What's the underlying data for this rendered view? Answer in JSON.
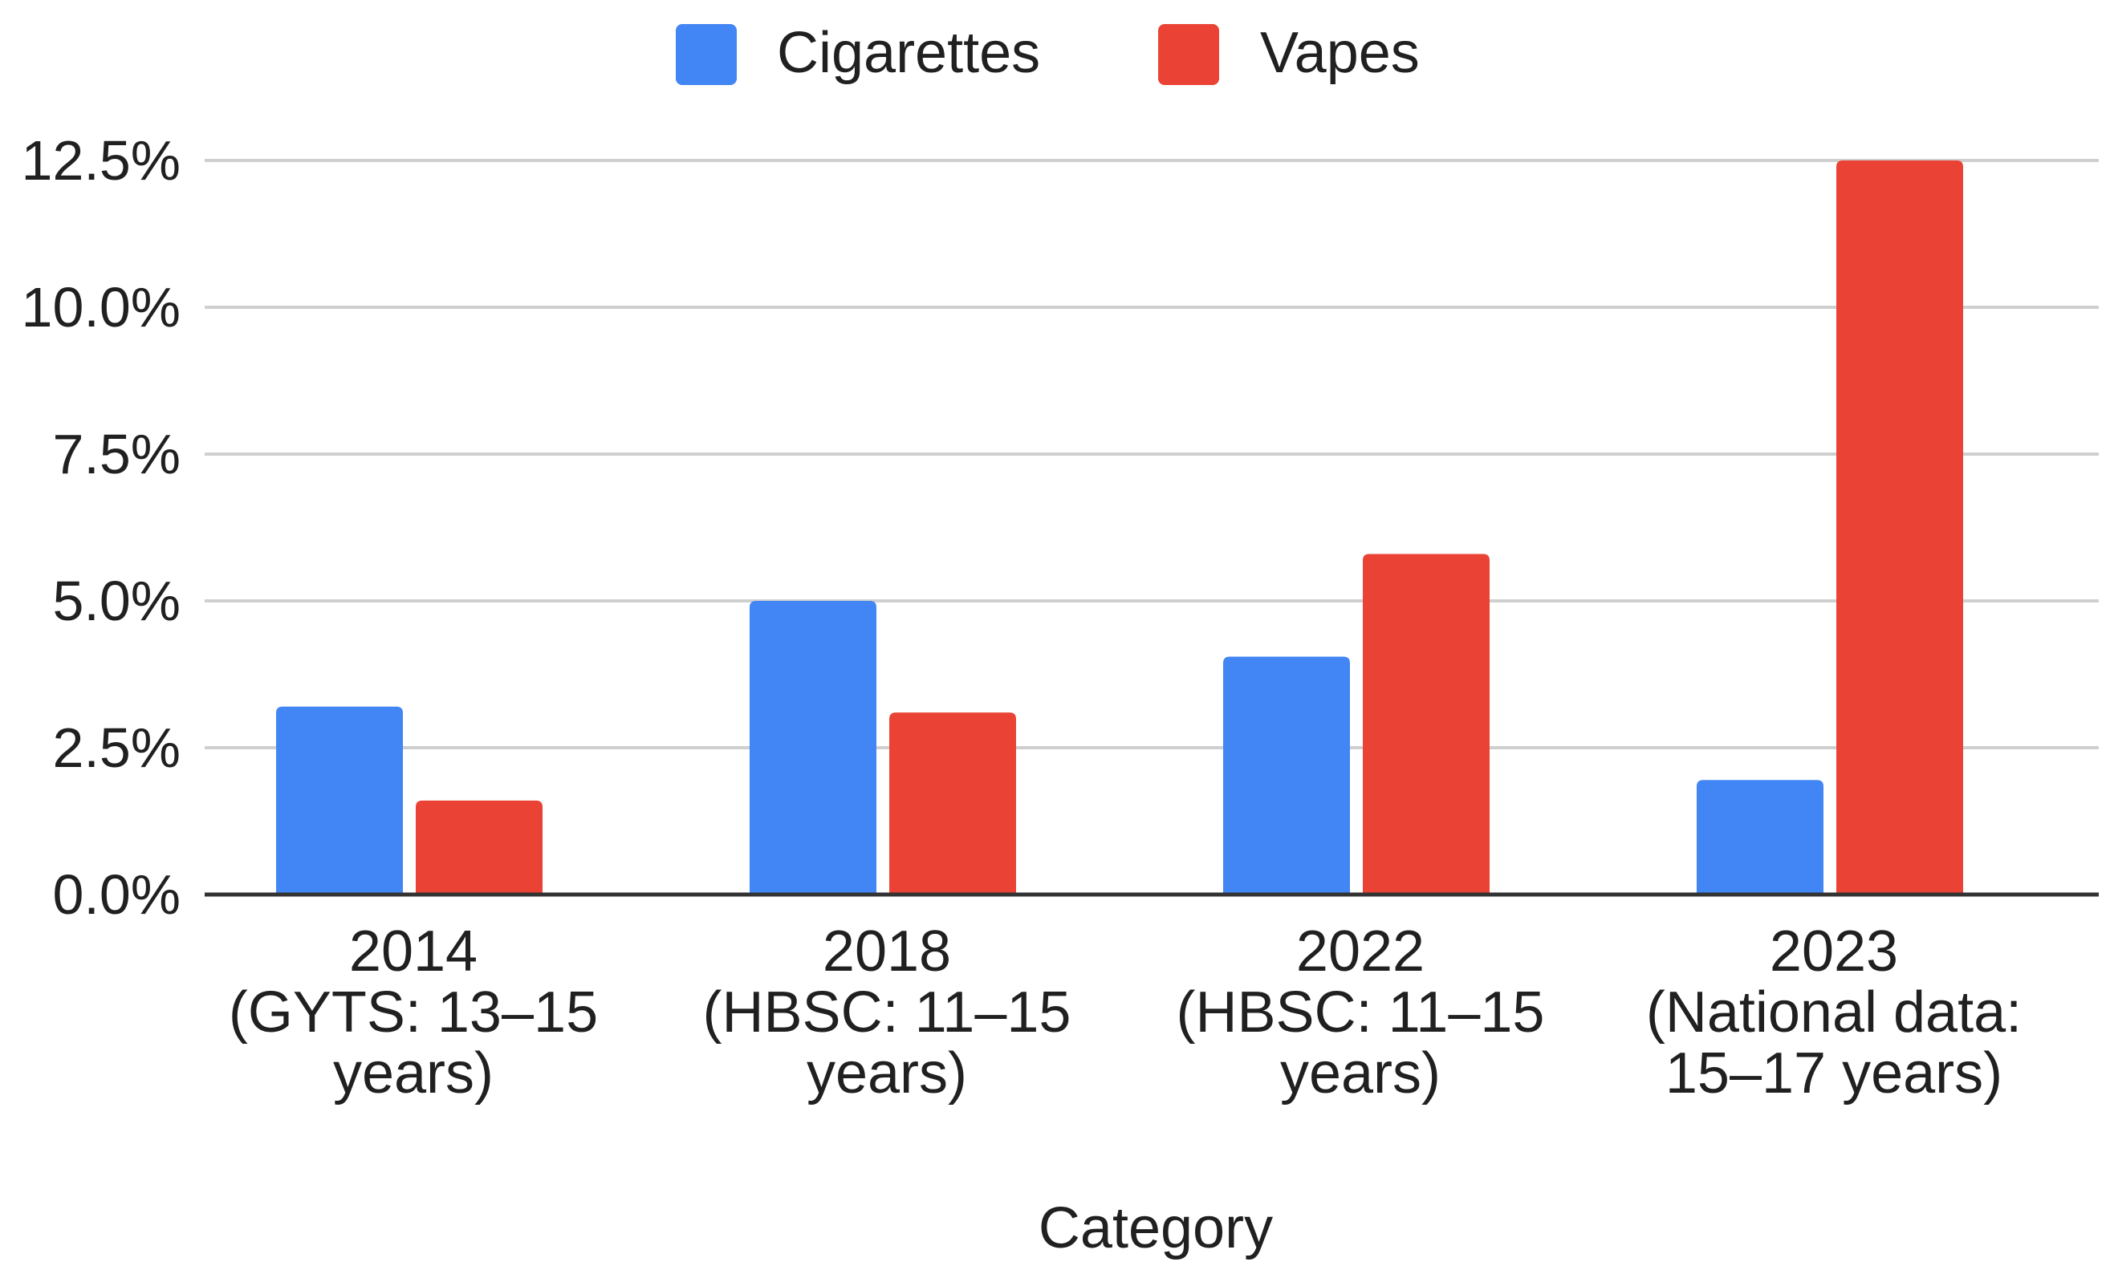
{
  "chart_data": {
    "type": "bar",
    "categories": [
      [
        "2014",
        "(GYTS: 13–15",
        "years)"
      ],
      [
        "2018",
        "(HBSC: 11–15",
        "years)"
      ],
      [
        "2022",
        "(HBSC: 11–15",
        "years)"
      ],
      [
        "2023",
        "(National data:",
        "15–17 years)"
      ]
    ],
    "series": [
      {
        "name": "Cigarettes",
        "color": "#4285f4",
        "values": [
          3.2,
          5.0,
          4.05,
          1.95
        ]
      },
      {
        "name": "Vapes",
        "color": "#ea4335",
        "values": [
          1.6,
          3.1,
          5.8,
          12.5
        ]
      }
    ],
    "xlabel": "Category",
    "ylabel": "",
    "ylim": [
      0,
      12.5
    ],
    "yticks": [
      "0.0%",
      "2.5%",
      "5.0%",
      "7.5%",
      "10.0%",
      "12.5%"
    ],
    "grid": true,
    "legend_position": "top-center"
  }
}
